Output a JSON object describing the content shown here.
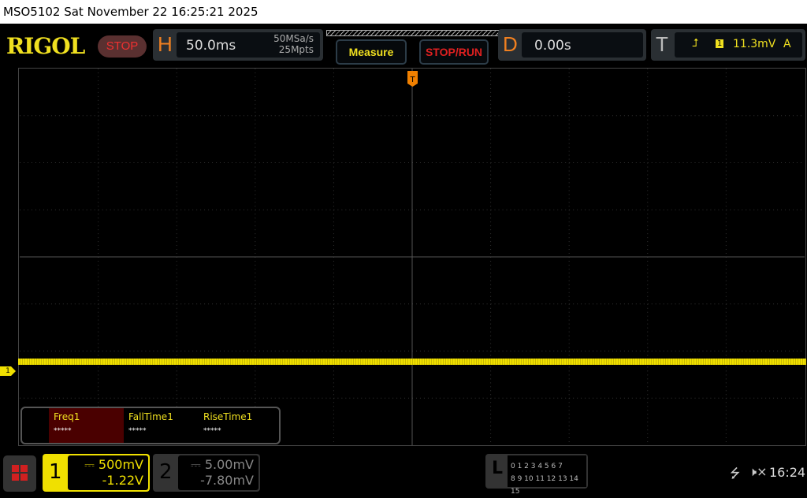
{
  "title": "MSO5102  Sat November 22 16:25:21 2025",
  "logo": "RIGOL",
  "run_state": "STOP",
  "horizontal": {
    "letter": "H",
    "timebase": "50.0ms",
    "sample_rate": "50MSa/s",
    "memory_depth": "25Mpts"
  },
  "buttons": {
    "measure": "Measure",
    "stop_run": "STOP/RUN"
  },
  "delay": {
    "letter": "D",
    "value": "0.00s"
  },
  "trigger": {
    "letter": "T",
    "source": "1",
    "level": "11.3mV",
    "mode": "A",
    "marker": "T"
  },
  "measurements": [
    {
      "label": "Freq1",
      "value": "*****"
    },
    {
      "label": "FallTime1",
      "value": "*****"
    },
    {
      "label": "RiseTime1",
      "value": "*****"
    }
  ],
  "channel1": {
    "num": "1",
    "scale": "500mV",
    "offset": "-1.22V",
    "color": "#f0e000",
    "marker": "1"
  },
  "channel2": {
    "num": "2",
    "scale": "5.00mV",
    "offset": "-7.80mV"
  },
  "logic": {
    "letter": "L",
    "row1": "0 1 2 3  4 5 6 7",
    "row2": "8 9 10 11 12 13 14 15"
  },
  "status": {
    "time": "16:24",
    "usb": "usb-icon",
    "sound": "muted-speaker-icon"
  }
}
